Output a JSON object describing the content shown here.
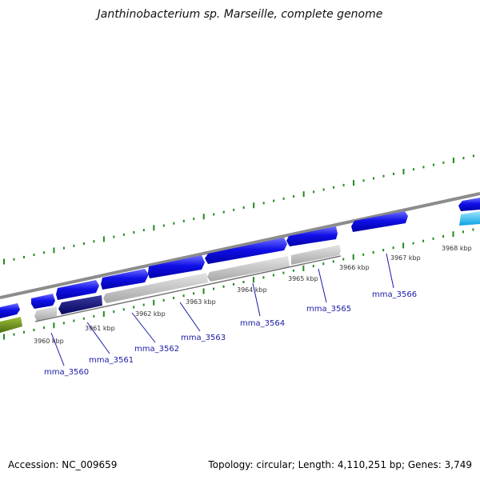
{
  "title": "Janthinobacterium sp. Marseille, complete genome",
  "footer": {
    "accession": "Accession: NC_009659",
    "summary": "Topology: circular; Length: 4,110,251 bp; Genes: 3,749"
  },
  "colors": {
    "backbone": "#8c8c8c",
    "tick": "#1f8a1f",
    "gene_blue": "#1010e8",
    "gene_navy": "#0a0a78",
    "gene_gray": "#c4c4c4",
    "gene_olive": "#6b8e23",
    "gene_cyan": "#29b6f6",
    "gene_label": "#1a1aa6",
    "tick_label": "#333333"
  },
  "kbp_ticks": [
    "3960 kbp",
    "3961 kbp",
    "3962 kbp",
    "3963 kbp",
    "3964 kbp",
    "3965 kbp",
    "3966 kbp",
    "3967 kbp",
    "3968 kbp"
  ],
  "gene_labels": [
    "mma_3560",
    "mma_3561",
    "mma_3562",
    "mma_3563",
    "mma_3564",
    "mma_3565",
    "mma_3566"
  ]
}
